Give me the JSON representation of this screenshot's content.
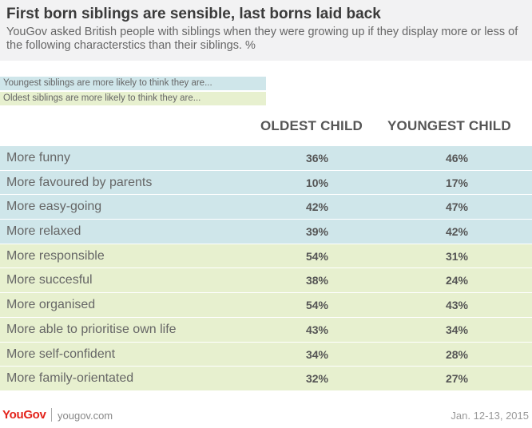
{
  "header": {
    "title": "First born siblings are sensible, last borns laid back",
    "subtitle": "YouGov asked British people with siblings when they were growing up if they display more or less of the following characterstics than their siblings. %"
  },
  "legend": {
    "youngest": "Youngest siblings are more likely to think they are...",
    "oldest": "Oldest siblings are more likely to think they are..."
  },
  "colors": {
    "youngest_row": "#cfe6ea",
    "oldest_row": "#e7f0cf",
    "brand": "#e3231b"
  },
  "chart_data": {
    "type": "table",
    "columns": [
      "OLDEST CHILD",
      "YOUNGEST CHILD"
    ],
    "rows": [
      {
        "label": "More funny",
        "oldest": "36%",
        "youngest": "46%",
        "group": "youngest"
      },
      {
        "label": "More favoured by parents",
        "oldest": "10%",
        "youngest": "17%",
        "group": "youngest"
      },
      {
        "label": "More easy-going",
        "oldest": "42%",
        "youngest": "47%",
        "group": "youngest"
      },
      {
        "label": "More relaxed",
        "oldest": "39%",
        "youngest": "42%",
        "group": "youngest"
      },
      {
        "label": "More responsible",
        "oldest": "54%",
        "youngest": "31%",
        "group": "oldest"
      },
      {
        "label": "More succesful",
        "oldest": "38%",
        "youngest": "24%",
        "group": "oldest"
      },
      {
        "label": "More organised",
        "oldest": "54%",
        "youngest": "43%",
        "group": "oldest"
      },
      {
        "label": "More able to prioritise own life",
        "oldest": "43%",
        "youngest": "34%",
        "group": "oldest"
      },
      {
        "label": "More self-confident",
        "oldest": "34%",
        "youngest": "28%",
        "group": "oldest"
      },
      {
        "label": "More family-orientated",
        "oldest": "32%",
        "youngest": "27%",
        "group": "oldest"
      }
    ]
  },
  "footer": {
    "brand": "YouGov",
    "site": "yougov.com",
    "date": "Jan. 12-13, 2015"
  }
}
